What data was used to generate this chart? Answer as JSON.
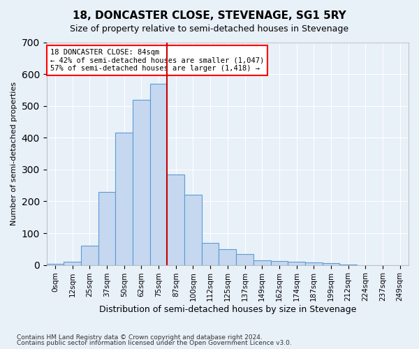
{
  "title": "18, DONCASTER CLOSE, STEVENAGE, SG1 5RY",
  "subtitle": "Size of property relative to semi-detached houses in Stevenage",
  "xlabel": "Distribution of semi-detached houses by size in Stevenage",
  "ylabel": "Number of semi-detached properties",
  "footnote1": "Contains HM Land Registry data © Crown copyright and database right 2024.",
  "footnote2": "Contains public sector information licensed under the Open Government Licence v3.0.",
  "bin_labels": [
    "0sqm",
    "12sqm",
    "25sqm",
    "37sqm",
    "50sqm",
    "62sqm",
    "75sqm",
    "87sqm",
    "100sqm",
    "112sqm",
    "125sqm",
    "137sqm",
    "149sqm",
    "162sqm",
    "174sqm",
    "187sqm",
    "199sqm",
    "212sqm",
    "224sqm",
    "237sqm",
    "249sqm"
  ],
  "bar_heights": [
    3,
    10,
    60,
    230,
    415,
    520,
    570,
    285,
    220,
    70,
    50,
    35,
    15,
    12,
    10,
    8,
    5,
    2,
    0,
    0,
    0
  ],
  "bar_color": "#c5d8f0",
  "bar_edge_color": "#5b9bd5",
  "property_value": 84,
  "property_line_bin": 7,
  "annotation_title": "18 DONCASTER CLOSE: 84sqm",
  "annotation_line1": "← 42% of semi-detached houses are smaller (1,047)",
  "annotation_line2": "57% of semi-detached houses are larger (1,418) →",
  "ylim": [
    0,
    700
  ],
  "yticks": [
    0,
    100,
    200,
    300,
    400,
    500,
    600,
    700
  ],
  "red_line_color": "#cc0000",
  "background_color": "#e8f0f8",
  "grid_color": "#ffffff"
}
